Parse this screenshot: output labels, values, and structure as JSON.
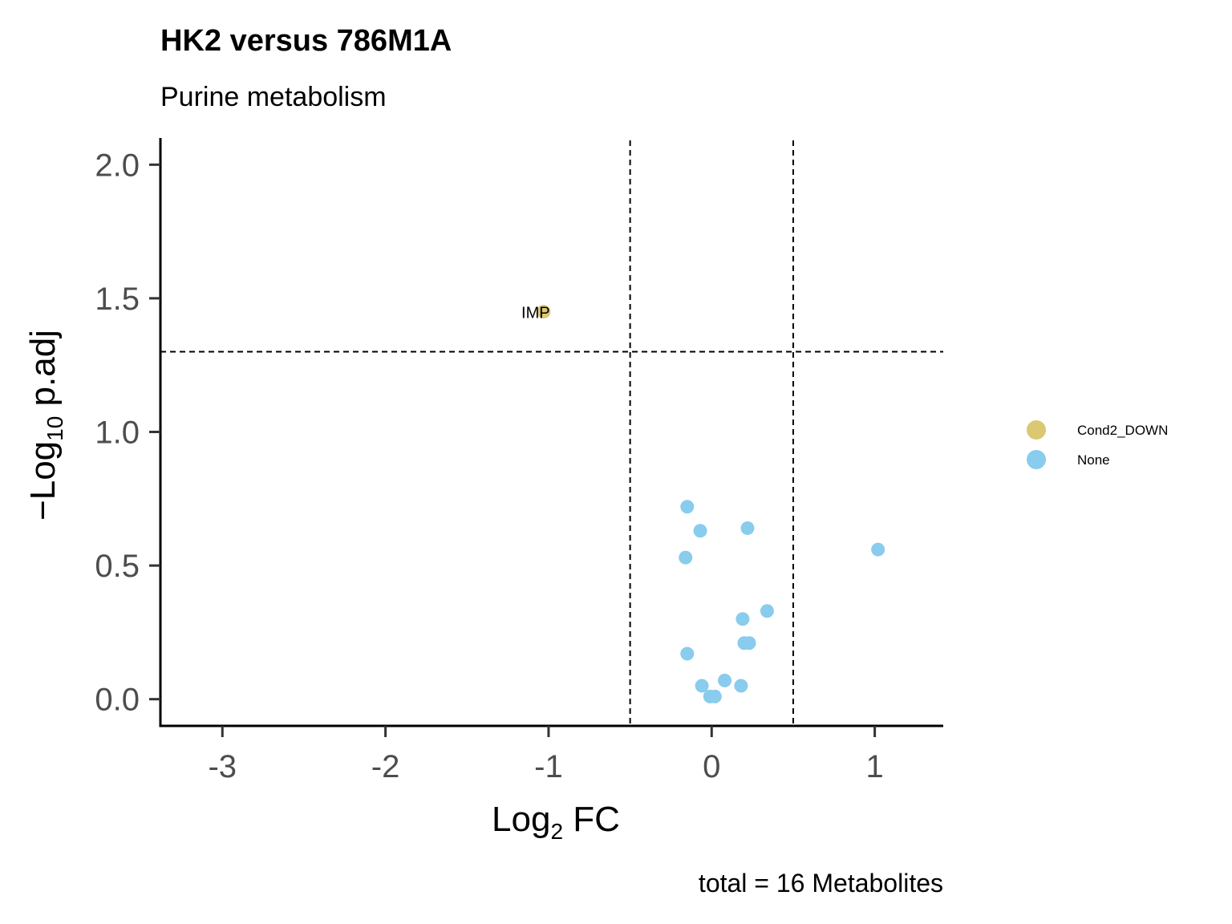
{
  "chart_data": {
    "type": "scatter",
    "title": "HK2 versus 786M1A",
    "subtitle": "Purine metabolism",
    "xlabel": {
      "main": "Log",
      "sub": "2",
      "rest": " FC"
    },
    "ylabel": {
      "main": "−Log",
      "sub": "10",
      "rest": " p.adj"
    },
    "caption": "total = 16 Metabolites",
    "xlim": [
      -3.38,
      1.42
    ],
    "ylim": [
      -0.1,
      2.1
    ],
    "xticks": [
      {
        "value": -3,
        "label": "-3"
      },
      {
        "value": -2,
        "label": "-2"
      },
      {
        "value": -1,
        "label": "-1"
      },
      {
        "value": 0,
        "label": "0"
      },
      {
        "value": 1,
        "label": "1"
      }
    ],
    "yticks": [
      {
        "value": 0.0,
        "label": "0.0"
      },
      {
        "value": 0.5,
        "label": "0.5"
      },
      {
        "value": 1.0,
        "label": "1.0"
      },
      {
        "value": 1.5,
        "label": "1.5"
      },
      {
        "value": 2.0,
        "label": "2.0"
      }
    ],
    "vlines": [
      -0.5,
      0.5
    ],
    "hline": 1.3,
    "grid": false,
    "legend_position": "right",
    "series": [
      {
        "name": "Cond2_DOWN",
        "color": "#dcc773",
        "points": [
          {
            "x": -1.03,
            "y": 1.45,
            "label": "IMP"
          }
        ]
      },
      {
        "name": "None",
        "color": "#89cced",
        "points": [
          {
            "x": -0.15,
            "y": 0.72
          },
          {
            "x": -0.07,
            "y": 0.63
          },
          {
            "x": 0.22,
            "y": 0.64
          },
          {
            "x": -0.16,
            "y": 0.53
          },
          {
            "x": 1.02,
            "y": 0.56
          },
          {
            "x": 0.34,
            "y": 0.33
          },
          {
            "x": 0.19,
            "y": 0.3
          },
          {
            "x": 0.2,
            "y": 0.21
          },
          {
            "x": 0.23,
            "y": 0.21
          },
          {
            "x": -0.15,
            "y": 0.17
          },
          {
            "x": -0.06,
            "y": 0.05
          },
          {
            "x": 0.08,
            "y": 0.07
          },
          {
            "x": 0.18,
            "y": 0.05
          },
          {
            "x": -0.01,
            "y": 0.01
          },
          {
            "x": 0.02,
            "y": 0.01
          }
        ]
      }
    ]
  }
}
